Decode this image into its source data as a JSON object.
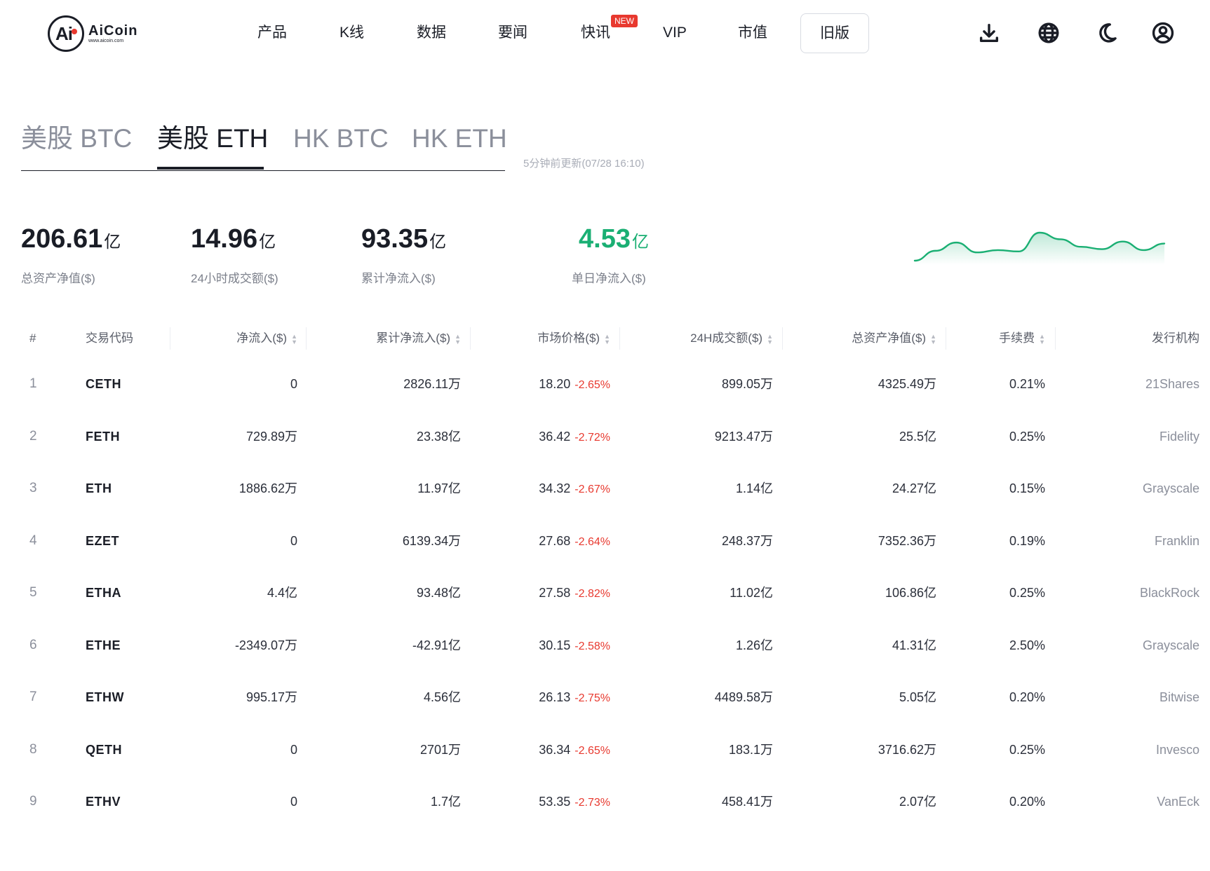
{
  "header": {
    "logo": {
      "name": "AiCoin",
      "url": "www.aicoin.com",
      "mark_text": "Ai"
    },
    "nav": [
      {
        "label": "产品"
      },
      {
        "label": "K线"
      },
      {
        "label": "数据"
      },
      {
        "label": "要闻"
      },
      {
        "label": "快讯"
      },
      {
        "label": "VIP"
      },
      {
        "label": "市值"
      }
    ],
    "new_badge": "NEW",
    "old_version_label": "旧版",
    "icons": [
      "download-icon",
      "globe-icon",
      "moon-icon",
      "user-icon"
    ]
  },
  "tabs": [
    {
      "label": "美股 BTC",
      "active": false
    },
    {
      "label": "美股 ETH",
      "active": true
    },
    {
      "label": "HK BTC",
      "active": false
    },
    {
      "label": "HK ETH",
      "active": false
    }
  ],
  "updated_text": "5分钟前更新(07/28 16:10)",
  "stats": [
    {
      "value": "206.61",
      "unit": "亿",
      "label": "总资产净值($)"
    },
    {
      "value": "14.96",
      "unit": "亿",
      "label": "24小时成交额($)"
    },
    {
      "value": "93.35",
      "unit": "亿",
      "label": "累计净流入($)"
    },
    {
      "value": "4.53",
      "unit": "亿",
      "label": "单日净流入($)",
      "color": "#1aaf73"
    }
  ],
  "sparkline": {
    "color": "#1aaf73",
    "values": [
      0.2,
      0.5,
      0.75,
      0.45,
      0.52,
      0.48,
      1.05,
      0.85,
      0.62,
      0.55,
      0.78,
      0.52,
      0.72
    ]
  },
  "table": {
    "columns": [
      "#",
      "交易代码",
      "净流入($)",
      "累计净流入($)",
      "市场价格($)",
      "24H成交额($)",
      "总资产净值($)",
      "手续费",
      "发行机构"
    ],
    "rows": [
      {
        "idx": "1",
        "code": "CETH",
        "net_inflow": "0",
        "cum_inflow": "2826.11万",
        "price": "18.20",
        "change": "-2.65%",
        "volume": "899.05万",
        "nav": "4325.49万",
        "fee": "0.21%",
        "issuer": "21Shares"
      },
      {
        "idx": "2",
        "code": "FETH",
        "net_inflow": "729.89万",
        "cum_inflow": "23.38亿",
        "price": "36.42",
        "change": "-2.72%",
        "volume": "9213.47万",
        "nav": "25.5亿",
        "fee": "0.25%",
        "issuer": "Fidelity"
      },
      {
        "idx": "3",
        "code": "ETH",
        "net_inflow": "1886.62万",
        "cum_inflow": "11.97亿",
        "price": "34.32",
        "change": "-2.67%",
        "volume": "1.14亿",
        "nav": "24.27亿",
        "fee": "0.15%",
        "issuer": "Grayscale"
      },
      {
        "idx": "4",
        "code": "EZET",
        "net_inflow": "0",
        "cum_inflow": "6139.34万",
        "price": "27.68",
        "change": "-2.64%",
        "volume": "248.37万",
        "nav": "7352.36万",
        "fee": "0.19%",
        "issuer": "Franklin"
      },
      {
        "idx": "5",
        "code": "ETHA",
        "net_inflow": "4.4亿",
        "cum_inflow": "93.48亿",
        "price": "27.58",
        "change": "-2.82%",
        "volume": "11.02亿",
        "nav": "106.86亿",
        "fee": "0.25%",
        "issuer": "BlackRock"
      },
      {
        "idx": "6",
        "code": "ETHE",
        "net_inflow": "-2349.07万",
        "cum_inflow": "-42.91亿",
        "price": "30.15",
        "change": "-2.58%",
        "volume": "1.26亿",
        "nav": "41.31亿",
        "fee": "2.50%",
        "issuer": "Grayscale"
      },
      {
        "idx": "7",
        "code": "ETHW",
        "net_inflow": "995.17万",
        "cum_inflow": "4.56亿",
        "price": "26.13",
        "change": "-2.75%",
        "volume": "4489.58万",
        "nav": "5.05亿",
        "fee": "0.20%",
        "issuer": "Bitwise"
      },
      {
        "idx": "8",
        "code": "QETH",
        "net_inflow": "0",
        "cum_inflow": "2701万",
        "price": "36.34",
        "change": "-2.65%",
        "volume": "183.1万",
        "nav": "3716.62万",
        "fee": "0.25%",
        "issuer": "Invesco"
      },
      {
        "idx": "9",
        "code": "ETHV",
        "net_inflow": "0",
        "cum_inflow": "1.7亿",
        "price": "53.35",
        "change": "-2.73%",
        "volume": "458.41万",
        "nav": "2.07亿",
        "fee": "0.20%",
        "issuer": "VanEck"
      }
    ]
  },
  "colors": {
    "negative": "#e8392f",
    "positive": "#1aaf73",
    "text": "#1a1d26",
    "muted": "#8b8f9b"
  }
}
